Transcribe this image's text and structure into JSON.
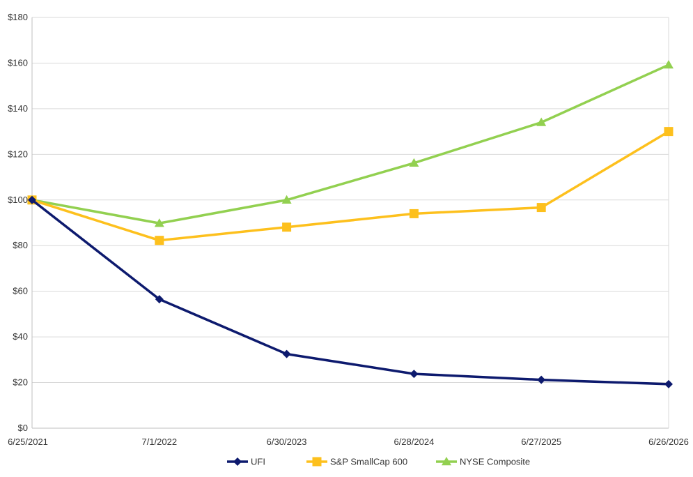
{
  "chart_data": {
    "type": "line",
    "title": "",
    "xlabel": "",
    "ylabel": "",
    "categories": [
      "6/25/2021",
      "7/1/2022",
      "6/30/2023",
      "6/28/2024",
      "6/27/2025",
      "6/26/2026"
    ],
    "ylim": [
      0,
      180
    ],
    "y_ticks": [
      0,
      20,
      40,
      60,
      80,
      100,
      120,
      140,
      160,
      180
    ],
    "y_tick_labels": [
      "$0",
      "$20",
      "$40",
      "$60",
      "$80",
      "$100",
      "$120",
      "$140",
      "$160",
      "$180"
    ],
    "grid": true,
    "legend_position": "bottom",
    "series": [
      {
        "name": "UFI",
        "color": "#0d1a6e",
        "marker": "diamond",
        "values": [
          100,
          56.5,
          32.5,
          23.8,
          21.2,
          19.3
        ]
      },
      {
        "name": "S&P SmallCap 600",
        "color": "#fdc01d",
        "marker": "square",
        "values": [
          100,
          82.3,
          88.1,
          94,
          96.7,
          130
        ]
      },
      {
        "name": "NYSE Composite",
        "color": "#92d050",
        "marker": "triangle",
        "values": [
          100,
          89.8,
          100,
          116.2,
          134,
          159.2
        ]
      }
    ]
  }
}
